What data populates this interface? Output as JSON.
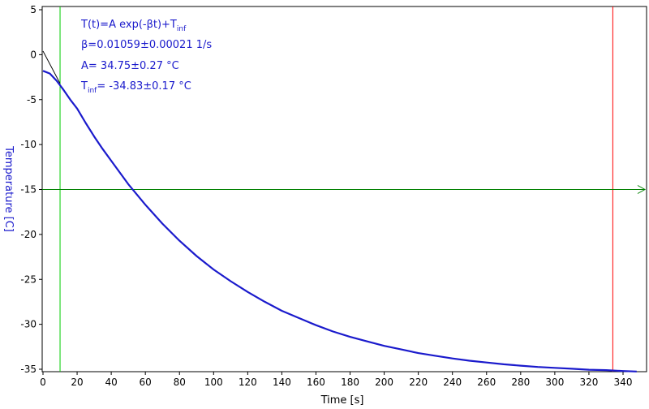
{
  "chart_data": {
    "type": "line",
    "xlabel": "Time [s]",
    "ylabel": "Temperature [C]",
    "xlim": [
      0,
      350
    ],
    "ylim": [
      -35,
      5
    ],
    "x_ticks": [
      0,
      20,
      40,
      60,
      80,
      100,
      120,
      140,
      160,
      180,
      200,
      220,
      240,
      260,
      280,
      300,
      320,
      340
    ],
    "y_ticks": [
      5,
      0,
      -5,
      -10,
      -15,
      -20,
      -25,
      -30,
      -35
    ],
    "grid": false,
    "fit": {
      "formula": "T(t)=A exp(-βt)+T",
      "formula_sub": "inf",
      "beta_text": "β=0.01059±0.00021 1/s",
      "A_text": "A= 34.75±0.27 °C",
      "Tinf_label": "T",
      "Tinf_sub": "inf",
      "Tinf_rest": "= -34.83±0.17 °C",
      "A": 34.75,
      "beta": 0.01059,
      "T_inf": -34.83
    },
    "markers": {
      "vertical_green_x": 10,
      "vertical_red_x": 334,
      "horizontal_green_y": -15
    },
    "series": [
      {
        "color": "#1a1acc",
        "x": [
          0,
          4,
          8,
          12,
          16,
          20,
          25,
          30,
          35,
          40,
          50,
          60,
          70,
          80,
          90,
          100,
          110,
          120,
          130,
          140,
          150,
          160,
          170,
          180,
          190,
          200,
          210,
          220,
          230,
          240,
          250,
          260,
          270,
          280,
          290,
          300,
          310,
          320,
          330,
          340,
          348
        ],
        "y": [
          -1.8,
          -2.1,
          -2.9,
          -3.9,
          -5.0,
          -6.0,
          -7.6,
          -9.1,
          -10.5,
          -11.8,
          -14.4,
          -16.7,
          -18.8,
          -20.7,
          -22.4,
          -23.9,
          -25.2,
          -26.4,
          -27.5,
          -28.5,
          -29.3,
          -30.1,
          -30.8,
          -31.4,
          -31.9,
          -32.4,
          -32.8,
          -33.2,
          -33.5,
          -33.8,
          -34.05,
          -34.25,
          -34.45,
          -34.6,
          -34.75,
          -34.85,
          -34.95,
          -35.05,
          -35.1,
          -35.2,
          -35.25
        ]
      }
    ],
    "fit_line_visible_segment": [
      [
        0,
        0.4
      ],
      [
        10,
        -3.2
      ]
    ]
  },
  "colors": {
    "data": "#1a1acc",
    "text_accent": "#1a1acc",
    "marker_green": "#00cc00",
    "horizontal_green": "#008000",
    "marker_red": "#ff0000",
    "fit_line": "#000000"
  }
}
